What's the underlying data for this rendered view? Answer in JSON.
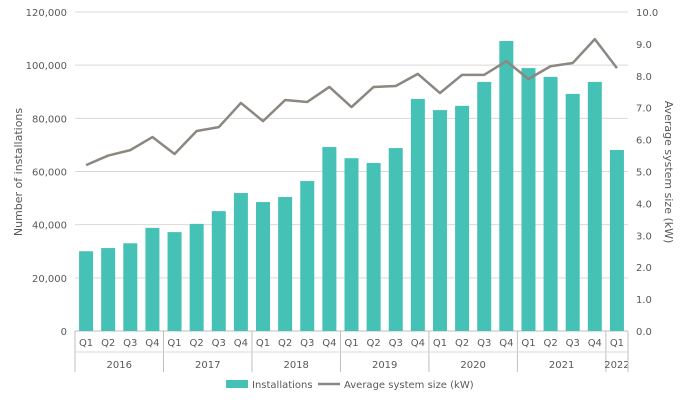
{
  "chart_data": {
    "type": "bar+line",
    "categories": [
      "Q1",
      "Q2",
      "Q3",
      "Q4",
      "Q1",
      "Q2",
      "Q3",
      "Q4",
      "Q1",
      "Q2",
      "Q3",
      "Q4",
      "Q1",
      "Q2",
      "Q3",
      "Q4",
      "Q1",
      "Q2",
      "Q3",
      "Q4",
      "Q1",
      "Q2",
      "Q3",
      "Q4",
      "Q1"
    ],
    "years": [
      {
        "label": "2016",
        "count": 4
      },
      {
        "label": "2017",
        "count": 4
      },
      {
        "label": "2018",
        "count": 4
      },
      {
        "label": "2019",
        "count": 4
      },
      {
        "label": "2020",
        "count": 4
      },
      {
        "label": "2021",
        "count": 4
      },
      {
        "label": "2022",
        "count": 1
      }
    ],
    "series": [
      {
        "name": "Installations",
        "type": "bar",
        "axis": "left",
        "color": "#45C1B5",
        "values": [
          30000,
          31200,
          33000,
          38800,
          37200,
          40300,
          45100,
          51900,
          48500,
          50400,
          56400,
          69200,
          65000,
          63200,
          68800,
          87300,
          83100,
          84700,
          93700,
          109100,
          98900,
          95600,
          89200,
          93700,
          68100
        ]
      },
      {
        "name": "Average system size (kW)",
        "type": "line",
        "axis": "right",
        "color": "#8C8781",
        "values": [
          5.2,
          5.5,
          5.67,
          6.08,
          5.55,
          6.27,
          6.39,
          7.15,
          6.58,
          7.24,
          7.18,
          7.65,
          7.02,
          7.65,
          7.68,
          8.06,
          7.46,
          8.03,
          8.03,
          8.46,
          7.9,
          8.3,
          8.4,
          9.15,
          8.24
        ]
      }
    ],
    "ylabel": "Number of installations",
    "y2label": "Average system size (kW)",
    "ylim": [
      0,
      120000
    ],
    "y2lim": [
      0,
      10
    ],
    "yticks": [
      "0",
      "20,000",
      "40,000",
      "60,000",
      "80,000",
      "100,000",
      "120,000"
    ],
    "y2ticks": [
      "0.0",
      "1.0",
      "2.0",
      "3.0",
      "4.0",
      "5.0",
      "6.0",
      "7.0",
      "8.0",
      "9.0",
      "10.0"
    ],
    "grid": true,
    "legend": "bottom"
  }
}
